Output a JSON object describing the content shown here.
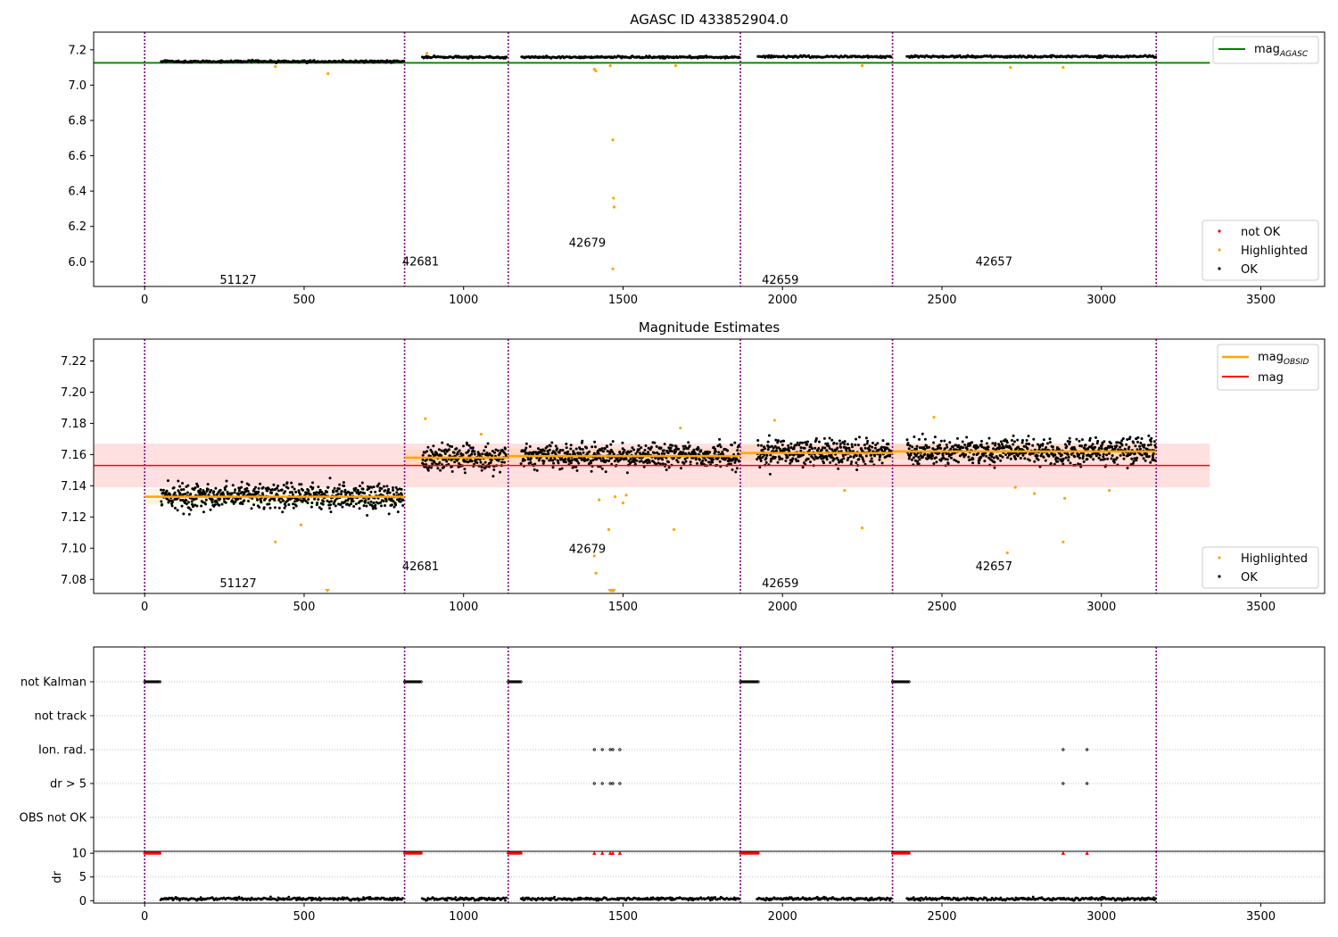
{
  "figure": {
    "vlines_x": [
      0,
      815,
      1140,
      1868,
      2345,
      3172
    ],
    "obsids": [
      {
        "x": 405,
        "label": "51127"
      },
      {
        "x": 977,
        "label": "42681"
      },
      {
        "x": 1500,
        "label": "42679"
      },
      {
        "x": 2105,
        "label": "42659"
      },
      {
        "x": 2775,
        "label": "42657"
      }
    ],
    "segments": [
      {
        "start": 50,
        "end": 810
      },
      {
        "start": 870,
        "end": 1135
      },
      {
        "start": 1180,
        "end": 1865
      },
      {
        "start": 1920,
        "end": 2340
      },
      {
        "start": 2390,
        "end": 3170
      }
    ],
    "colors": {
      "ok": "#000000",
      "highlighted": "#ffa500",
      "not_ok": "#ff0000",
      "agasc_line": "#008000",
      "mag_line": "#ff0000",
      "obsid_line": "#ffa500",
      "vline": "#800080"
    }
  },
  "chart_data": [
    {
      "type": "scatter",
      "title": "AGASC ID 433852904.0",
      "xlim": [
        -160,
        3700
      ],
      "ylim": [
        5.86,
        7.3
      ],
      "xticks": [
        0,
        500,
        1000,
        1500,
        2000,
        2500,
        3000,
        3500
      ],
      "yticks": [
        6.0,
        6.2,
        6.4,
        6.6,
        6.8,
        7.0,
        7.2
      ],
      "ytick_labels": [
        "6.0",
        "6.2",
        "6.4",
        "6.6",
        "6.8",
        "7.0",
        "7.2"
      ],
      "obsid_label_y": [
        5.875,
        5.98,
        6.085,
        5.875,
        5.98
      ],
      "segment_levels": [
        7.134,
        7.158,
        7.158,
        7.161,
        7.162
      ],
      "lines": [
        {
          "name": "mag",
          "subscript": "AGASC",
          "y": 7.126,
          "x_range": [
            -160,
            3340
          ]
        }
      ],
      "highlighted": [
        {
          "x": 410,
          "y": 7.105
        },
        {
          "x": 575,
          "y": 7.065
        },
        {
          "x": 885,
          "y": 7.18
        },
        {
          "x": 1410,
          "y": 7.09
        },
        {
          "x": 1415,
          "y": 7.08
        },
        {
          "x": 1460,
          "y": 7.11
        },
        {
          "x": 1468,
          "y": 6.69
        },
        {
          "x": 1470,
          "y": 6.36
        },
        {
          "x": 1472,
          "y": 6.31
        },
        {
          "x": 1468,
          "y": 5.96
        },
        {
          "x": 1665,
          "y": 7.11
        },
        {
          "x": 2250,
          "y": 7.11
        },
        {
          "x": 2715,
          "y": 7.1
        },
        {
          "x": 2880,
          "y": 7.1
        }
      ],
      "legends": [
        {
          "position": "upper-right",
          "entries": [
            {
              "kind": "line",
              "color": "#008000",
              "label": "mag",
              "subscript": "AGASC"
            }
          ]
        },
        {
          "position": "lower-right",
          "entries": [
            {
              "kind": "dot",
              "color": "#ff0000",
              "label": "not OK"
            },
            {
              "kind": "dot",
              "color": "#ffa500",
              "label": "Highlighted"
            },
            {
              "kind": "dot",
              "color": "#000000",
              "label": "OK"
            }
          ]
        }
      ]
    },
    {
      "type": "scatter",
      "title": "Magnitude Estimates",
      "xlim": [
        -160,
        3700
      ],
      "ylim": [
        7.071,
        7.234
      ],
      "xticks": [
        0,
        500,
        1000,
        1500,
        2000,
        2500,
        3000,
        3500
      ],
      "yticks": [
        7.08,
        7.1,
        7.12,
        7.14,
        7.16,
        7.18,
        7.2,
        7.22
      ],
      "ytick_labels": [
        "7.08",
        "7.10",
        "7.12",
        "7.14",
        "7.16",
        "7.18",
        "7.20",
        "7.22"
      ],
      "obsid_label_y": [
        7.075,
        7.086,
        7.097,
        7.075,
        7.086
      ],
      "mag_line": {
        "name": "mag",
        "y": 7.153,
        "band": [
          7.139,
          7.167
        ],
        "x_range": [
          -160,
          3340
        ]
      },
      "obsid_means": [
        {
          "start": 0,
          "end": 815,
          "y": 7.133,
          "band": [
            7.128,
            7.138
          ]
        },
        {
          "start": 815,
          "end": 1140,
          "y": 7.158,
          "band": [
            7.153,
            7.163
          ]
        },
        {
          "start": 1140,
          "end": 1868,
          "y": 7.159,
          "band": [
            7.154,
            7.164
          ]
        },
        {
          "start": 1868,
          "end": 2345,
          "y": 7.161,
          "band": [
            7.156,
            7.166
          ]
        },
        {
          "start": 2345,
          "end": 3172,
          "y": 7.162,
          "band": [
            7.157,
            7.167
          ]
        }
      ],
      "highlighted": [
        {
          "x": 410,
          "y": 7.104
        },
        {
          "x": 490,
          "y": 7.115
        },
        {
          "x": 880,
          "y": 7.183
        },
        {
          "x": 1055,
          "y": 7.173
        },
        {
          "x": 1410,
          "y": 7.095
        },
        {
          "x": 1415,
          "y": 7.084
        },
        {
          "x": 1425,
          "y": 7.131
        },
        {
          "x": 1455,
          "y": 7.112
        },
        {
          "x": 1475,
          "y": 7.133
        },
        {
          "x": 1500,
          "y": 7.129
        },
        {
          "x": 1510,
          "y": 7.134
        },
        {
          "x": 1660,
          "y": 7.112
        },
        {
          "x": 1680,
          "y": 7.177
        },
        {
          "x": 1975,
          "y": 7.182
        },
        {
          "x": 2195,
          "y": 7.137
        },
        {
          "x": 2250,
          "y": 7.113
        },
        {
          "x": 2475,
          "y": 7.184
        },
        {
          "x": 2705,
          "y": 7.097
        },
        {
          "x": 2730,
          "y": 7.139
        },
        {
          "x": 2790,
          "y": 7.135
        },
        {
          "x": 2880,
          "y": 7.104
        },
        {
          "x": 2885,
          "y": 7.132
        },
        {
          "x": 3025,
          "y": 7.137
        }
      ],
      "offscale_highlighted_x": [
        573,
        1460,
        1466,
        1470
      ],
      "legends": [
        {
          "position": "upper-right",
          "entries": [
            {
              "kind": "line",
              "color": "#ffa500",
              "label": "mag",
              "subscript": "OBSID"
            },
            {
              "kind": "line",
              "color": "#ff0000",
              "label": "mag"
            }
          ]
        },
        {
          "position": "lower-right",
          "entries": [
            {
              "kind": "dot",
              "color": "#ffa500",
              "label": "Highlighted"
            },
            {
              "kind": "dot",
              "color": "#000000",
              "label": "OK"
            }
          ]
        }
      ]
    },
    {
      "type": "scatter",
      "title": "",
      "xlim": [
        -160,
        3700
      ],
      "categories": [
        "not Kalman",
        "not track",
        "Ion. rad.",
        "dr > 5",
        "OBS not OK"
      ],
      "flags": {
        "not Kalman": [
          [
            0,
            50
          ],
          [
            815,
            870
          ],
          [
            1140,
            1180
          ],
          [
            1868,
            1925
          ],
          [
            2345,
            2400
          ]
        ],
        "Ion. rad.": [
          1410,
          1435,
          1460,
          1468,
          1490,
          2880,
          2955
        ],
        "dr > 5": [
          1410,
          1435,
          1460,
          1468,
          1490,
          2880,
          2955
        ]
      }
    },
    {
      "type": "scatter",
      "title": "",
      "ylabel": "dr",
      "xlim": [
        -160,
        3700
      ],
      "ylim": [
        -0.5,
        10.4
      ],
      "xticks": [
        0,
        500,
        1000,
        1500,
        2000,
        2500,
        3000,
        3500
      ],
      "yticks": [
        0,
        5,
        10
      ],
      "ytick_labels": [
        "0",
        "5",
        "10"
      ],
      "not_ok_y": 10,
      "not_ok_ranges": [
        [
          0,
          50
        ],
        [
          815,
          870
        ],
        [
          1140,
          1180
        ],
        [
          1868,
          1925
        ],
        [
          2345,
          2400
        ]
      ],
      "not_ok_points": [
        1410,
        1435,
        1460,
        1468,
        1490,
        2880,
        2955
      ],
      "ok_level": 0.4
    }
  ]
}
